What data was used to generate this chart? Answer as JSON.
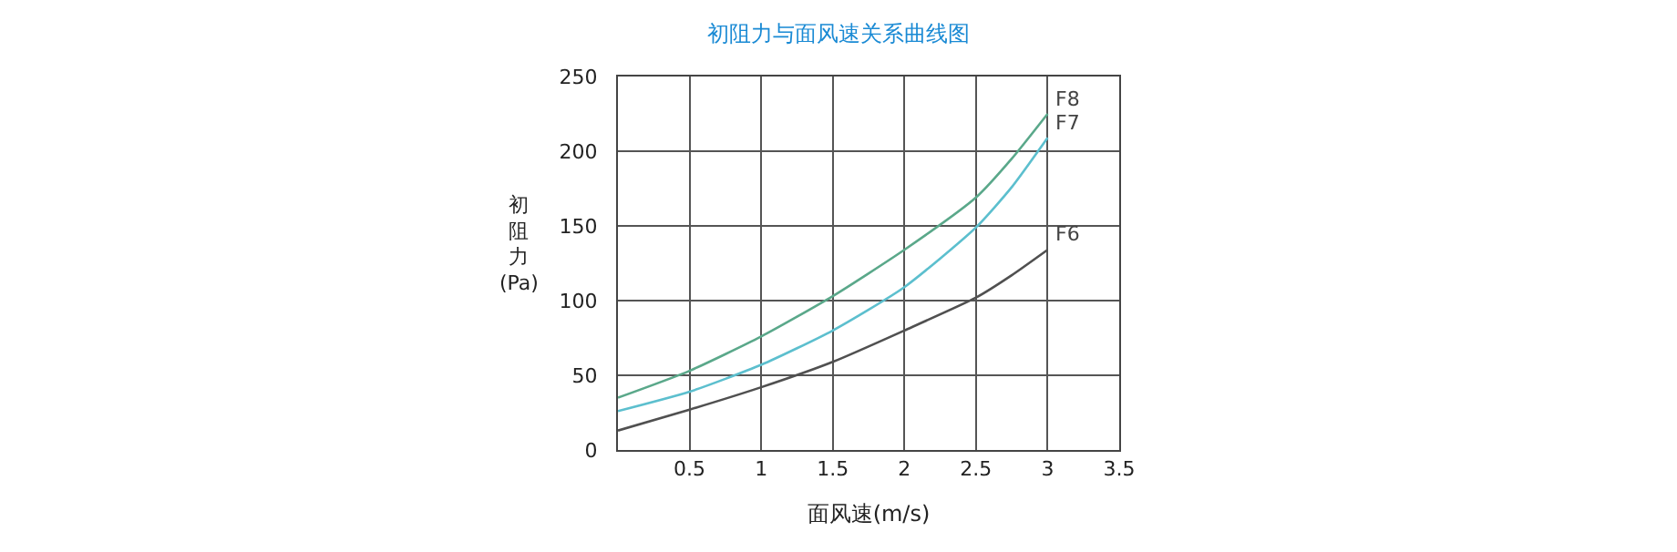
{
  "chart_data": {
    "type": "line",
    "title": "初阻力与面风速关系曲线图",
    "xlabel": "面风速(m/s)",
    "ylabel": "初阻力(Pa)",
    "x": [
      0,
      0.5,
      1,
      1.5,
      2,
      2.5,
      2.75,
      3
    ],
    "series": [
      {
        "name": "F8",
        "color": "#5aa88a",
        "values": [
          35,
          53,
          76,
          103,
          134,
          169,
          195,
          225
        ]
      },
      {
        "name": "F7",
        "color": "#5cbfce",
        "values": [
          26,
          39,
          57,
          80,
          109,
          149,
          176,
          209
        ]
      },
      {
        "name": "F6",
        "color": "#505050",
        "values": [
          13,
          27,
          42,
          59,
          80,
          102,
          117,
          134
        ]
      }
    ],
    "xlim": [
      0,
      3.5
    ],
    "xticks": [
      0.5,
      1,
      1.5,
      2,
      2.5,
      3,
      3.5
    ],
    "ylim": [
      0,
      250
    ],
    "yticks": [
      0,
      50,
      100,
      150,
      200,
      250
    ],
    "grid": true,
    "legend": false,
    "marker": "none",
    "line_style": "solid"
  }
}
